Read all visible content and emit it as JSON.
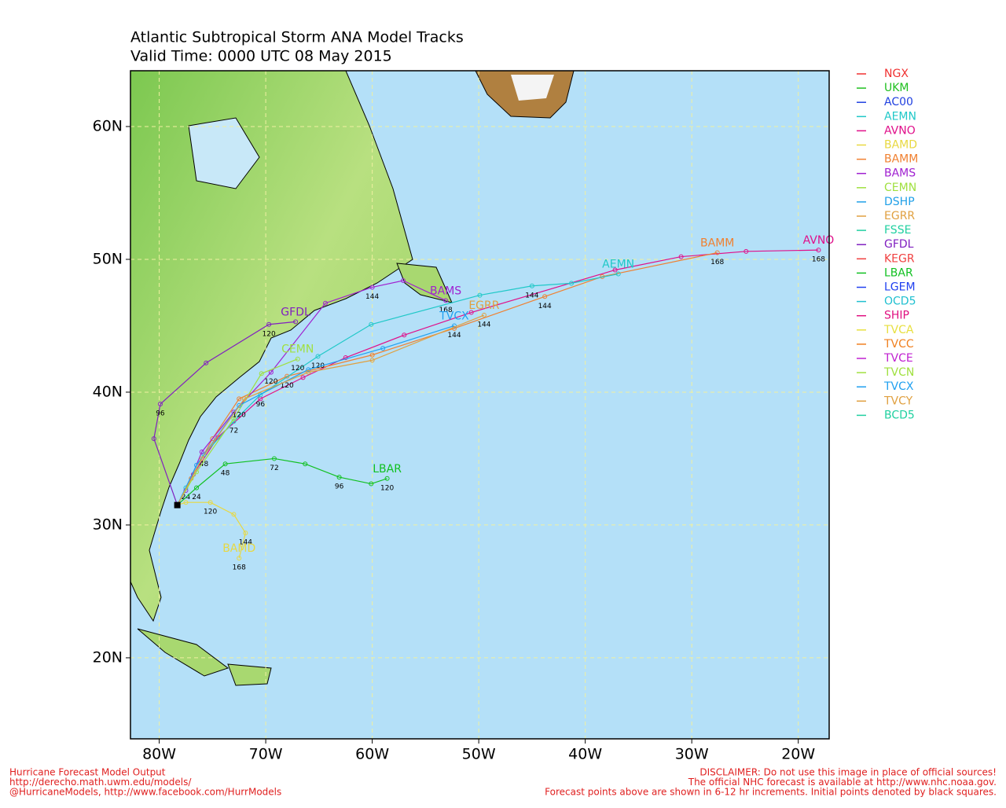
{
  "header": {
    "title": "Atlantic Subtropical Storm ANA Model Tracks",
    "valid_time": "Valid Time: 0000 UTC 08 May 2015"
  },
  "map": {
    "lonlim": [
      -82.7,
      -17.1
    ],
    "latlim": [
      13.9,
      64.2
    ],
    "grid": true,
    "lonticks": [
      {
        "value": -80,
        "label": "80W"
      },
      {
        "value": -70,
        "label": "70W"
      },
      {
        "value": -60,
        "label": "60W"
      },
      {
        "value": -50,
        "label": "50W"
      },
      {
        "value": -40,
        "label": "40W"
      },
      {
        "value": -30,
        "label": "30W"
      },
      {
        "value": -20,
        "label": "20W"
      }
    ],
    "latticks": [
      {
        "value": 20,
        "label": "20N"
      },
      {
        "value": 30,
        "label": "30N"
      },
      {
        "value": 40,
        "label": "40N"
      },
      {
        "value": 50,
        "label": "50N"
      },
      {
        "value": 60,
        "label": "60N"
      }
    ]
  },
  "legend": [
    {
      "name": "NGX",
      "color": "#f03030"
    },
    {
      "name": "UKM",
      "color": "#20c020"
    },
    {
      "name": "AC00",
      "color": "#2040e0"
    },
    {
      "name": "AEMN",
      "color": "#20c8c8"
    },
    {
      "name": "AVNO",
      "color": "#e0108a"
    },
    {
      "name": "BAMD",
      "color": "#e8d840"
    },
    {
      "name": "BAMM",
      "color": "#f08030"
    },
    {
      "name": "BAMS",
      "color": "#a020d0"
    },
    {
      "name": "CEMN",
      "color": "#a0e040"
    },
    {
      "name": "DSHP",
      "color": "#20a0e8"
    },
    {
      "name": "EGRR",
      "color": "#e0a040"
    },
    {
      "name": "FSSE",
      "color": "#20d0a0"
    },
    {
      "name": "GFDL",
      "color": "#8020c0"
    },
    {
      "name": "KEGR",
      "color": "#f04040"
    },
    {
      "name": "LBAR",
      "color": "#10c020"
    },
    {
      "name": "LGEM",
      "color": "#2040f0"
    },
    {
      "name": "OCD5",
      "color": "#20c0d0"
    },
    {
      "name": "SHIP",
      "color": "#e01080"
    },
    {
      "name": "TVCA",
      "color": "#e8e040"
    },
    {
      "name": "TVCC",
      "color": "#f08020"
    },
    {
      "name": "TVCE",
      "color": "#c020d0"
    },
    {
      "name": "TVCN",
      "color": "#a0e040"
    },
    {
      "name": "TVCX",
      "color": "#20a0f0"
    },
    {
      "name": "TVCY",
      "color": "#e0a040"
    },
    {
      "name": "BCD5",
      "color": "#20d0a0"
    }
  ],
  "tracks": [
    {
      "name": "AVNO",
      "color": "#e0108a",
      "lon": [
        -78.3,
        -76.8,
        -74.5,
        -70.5,
        -66.5,
        -62.5,
        -57,
        -50.7,
        -37.2,
        -31,
        -24.9,
        -18.1
      ],
      "lat": [
        31.5,
        33.8,
        36.6,
        39.5,
        41.1,
        42.6,
        44.3,
        46.0,
        49.2,
        50.2,
        50.6,
        50.7
      ],
      "hours": [
        null,
        null,
        null,
        null,
        null,
        null,
        null,
        null,
        null,
        null,
        null,
        168
      ]
    },
    {
      "name": "BAMM",
      "color": "#f08030",
      "lon": [
        -78.3,
        -77,
        -75,
        -72.5,
        -68,
        -60,
        -52.3,
        -43.8,
        -38.4,
        -27.6
      ],
      "lat": [
        31.5,
        33.5,
        36.5,
        39.5,
        41.2,
        42.8,
        44.8,
        47.2,
        48.7,
        50.5
      ],
      "hours": [
        null,
        null,
        null,
        null,
        120,
        null,
        null,
        144,
        null,
        168
      ]
    },
    {
      "name": "AEMN",
      "color": "#20c8c8",
      "lon": [
        -78.3,
        -77.5,
        -75.8,
        -73,
        -70.5,
        -65.1,
        -60.1,
        -49.9,
        -45,
        -41.3,
        -36.9
      ],
      "lat": [
        31.5,
        32.8,
        35.3,
        37.8,
        39.8,
        42.7,
        45.1,
        47.3,
        48.0,
        48.2,
        48.9
      ],
      "hours": [
        null,
        24,
        48,
        72,
        96,
        120,
        null,
        null,
        144,
        null,
        null
      ]
    },
    {
      "name": "LBAR",
      "color": "#10c020",
      "lon": [
        -78.3,
        -76.5,
        -73.8,
        -69.2,
        -66.3,
        -63.1,
        -60.1,
        -58.6
      ],
      "lat": [
        31.5,
        32.8,
        34.6,
        35.0,
        34.6,
        33.6,
        33.1,
        33.5
      ],
      "hours": [
        null,
        24,
        48,
        72,
        null,
        96,
        null,
        120
      ]
    },
    {
      "name": "BAMD",
      "color": "#e8d840",
      "lon": [
        -78.3,
        -77.5,
        -75.2,
        -73,
        -71.9,
        -72.5
      ],
      "lat": [
        31.5,
        31.7,
        31.7,
        30.8,
        29.4,
        27.5
      ],
      "hours": [
        null,
        null,
        120,
        null,
        144,
        168
      ]
    },
    {
      "name": "BAMS",
      "color": "#a020d0",
      "lon": [
        -78.3,
        -77.5,
        -76,
        -73,
        -69.5,
        -64.4,
        -60,
        -57.1,
        -53.1
      ],
      "lat": [
        31.5,
        32.6,
        35.5,
        38.5,
        41.5,
        46.7,
        47.9,
        48.4,
        46.9
      ],
      "hours": [
        null,
        null,
        null,
        null,
        120,
        null,
        144,
        null,
        168
      ]
    },
    {
      "name": "GFDL",
      "color": "#8020c0",
      "lon": [
        -78.3,
        -80.5,
        -79.9,
        -75.6,
        -69.7,
        -67.2
      ],
      "lat": [
        31.5,
        36.5,
        39.1,
        42.2,
        45.1,
        45.3
      ],
      "hours": [
        null,
        null,
        96,
        null,
        120,
        null
      ]
    },
    {
      "name": "CEMN",
      "color": "#a0e040",
      "lon": [
        -78.3,
        -76.5,
        -73,
        -70.4,
        -67
      ],
      "lat": [
        31.5,
        34,
        38,
        41.4,
        42.5
      ],
      "hours": [
        null,
        null,
        null,
        null,
        120
      ]
    },
    {
      "name": "TVCX",
      "color": "#20a0f0",
      "lon": [
        -78.3,
        -76.5,
        -72.5,
        -66,
        -59,
        -52.3
      ],
      "lat": [
        31.5,
        34.5,
        39,
        41.7,
        43.3,
        45.0
      ],
      "hours": [
        null,
        null,
        120,
        null,
        null,
        144
      ]
    },
    {
      "name": "EGRR",
      "color": "#e0a040",
      "lon": [
        -78.3,
        -76,
        -72,
        -66,
        -60,
        -49.5
      ],
      "lat": [
        31.5,
        35,
        39.5,
        41.5,
        42.4,
        45.8
      ],
      "hours": [
        null,
        null,
        null,
        null,
        null,
        144
      ]
    }
  ],
  "footer": {
    "left": [
      "Hurricane Forecast Model Output",
      "http://derecho.math.uwm.edu/models/",
      "@HurricaneModels, http://www.facebook.com/HurrModels"
    ],
    "right": [
      "DISCLAIMER: Do not use this image in place of official sources!",
      "The official NHC forecast is available at http://www.nhc.noaa.gov.",
      "Forecast points above are shown in 6-12 hr increments. Initial points denoted by black squares."
    ]
  }
}
